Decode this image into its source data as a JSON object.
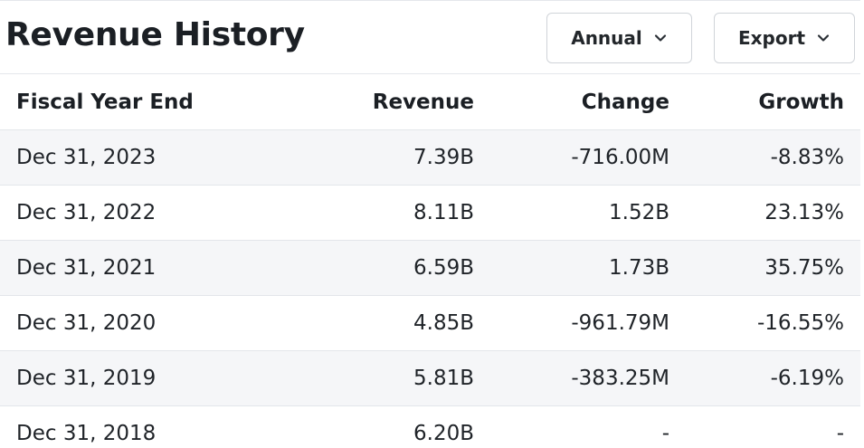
{
  "header": {
    "title": "Revenue History",
    "period_button": {
      "label": "Annual",
      "icon": "chevron-down-icon"
    },
    "export_button": {
      "label": "Export",
      "icon": "chevron-down-icon"
    }
  },
  "table": {
    "columns": [
      "Fiscal Year End",
      "Revenue",
      "Change",
      "Growth"
    ],
    "rows": [
      {
        "year": "Dec 31, 2023",
        "revenue": "7.39B",
        "change": "-716.00M",
        "growth": "-8.83%",
        "trend": "negative"
      },
      {
        "year": "Dec 31, 2022",
        "revenue": "8.11B",
        "change": "1.52B",
        "growth": "23.13%",
        "trend": "positive"
      },
      {
        "year": "Dec 31, 2021",
        "revenue": "6.59B",
        "change": "1.73B",
        "growth": "35.75%",
        "trend": "positive"
      },
      {
        "year": "Dec 31, 2020",
        "revenue": "4.85B",
        "change": "-961.79M",
        "growth": "-16.55%",
        "trend": "negative"
      },
      {
        "year": "Dec 31, 2019",
        "revenue": "5.81B",
        "change": "-383.25M",
        "growth": "-6.19%",
        "trend": "negative"
      },
      {
        "year": "Dec 31, 2018",
        "revenue": "6.20B",
        "change": "-",
        "growth": "-",
        "trend": "none"
      }
    ]
  },
  "colors": {
    "negative": "#d1242f",
    "positive": "#1a7f37",
    "row_shade": "#f5f6f8"
  }
}
